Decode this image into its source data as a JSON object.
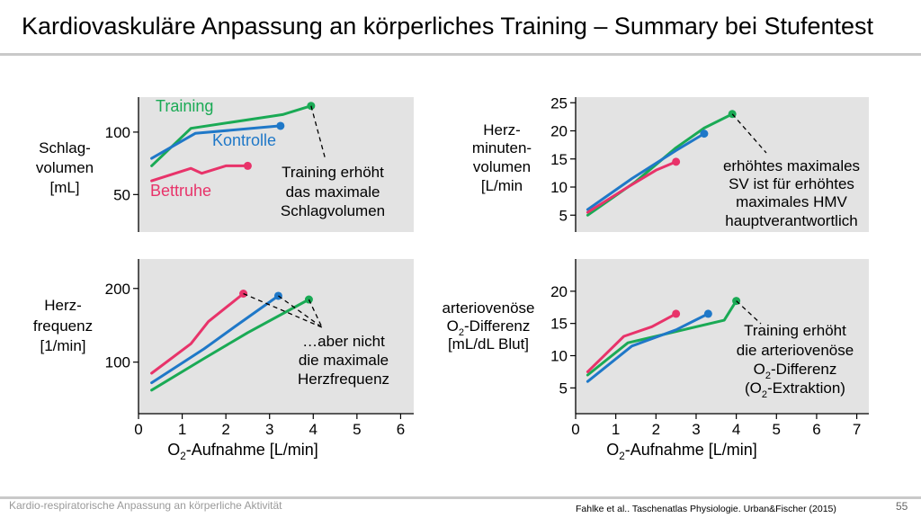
{
  "slide": {
    "title": "Kardiovaskuläre Anpassung an körperliches Training – Summary bei Stufentest",
    "footer_left": "Kardio-respiratorische Anpassung an körperliche Aktivität",
    "citation": "Fahlke et al.. Taschenatlas Physiologie. Urban&Fischer (2015)",
    "page_number": "55"
  },
  "colors": {
    "training": "#1aaa55",
    "kontrolle": "#1f78c8",
    "bettruhe": "#e8336a",
    "panel_bg": "#e3e3e3"
  },
  "chart_data": [
    {
      "type": "line",
      "ylabel": [
        "Schlag-",
        "volumen",
        "[mL]"
      ],
      "xlim": [
        0,
        6.3
      ],
      "ylim": [
        20,
        128
      ],
      "yticks": [
        50,
        100
      ],
      "series": [
        {
          "name": "Training",
          "color": "#1aaa55",
          "x": [
            0.3,
            1.2,
            3.3,
            3.95
          ],
          "y": [
            73,
            103,
            114,
            121
          ]
        },
        {
          "name": "Kontrolle",
          "color": "#1f78c8",
          "x": [
            0.3,
            1.3,
            3.25
          ],
          "y": [
            79,
            99,
            105
          ]
        },
        {
          "name": "Bettruhe",
          "color": "#e8336a",
          "x": [
            0.3,
            1.2,
            1.45,
            2.0,
            2.5
          ],
          "y": [
            61,
            71,
            67,
            73,
            73
          ]
        }
      ],
      "annotation": [
        "Training erhöht",
        "das maximale",
        "Schlagvolumen"
      ]
    },
    {
      "type": "line",
      "ylabel": [
        "Herz-",
        "minuten-",
        "volumen",
        "[L/min"
      ],
      "xlim": [
        0,
        7.3
      ],
      "ylim": [
        2,
        26
      ],
      "yticks": [
        5,
        10,
        15,
        20,
        25
      ],
      "series": [
        {
          "name": "Training",
          "color": "#1aaa55",
          "x": [
            0.3,
            1.5,
            2.5,
            3.2,
            3.9
          ],
          "y": [
            5,
            11,
            17,
            20.5,
            23
          ]
        },
        {
          "name": "Kontrolle",
          "color": "#1f78c8",
          "x": [
            0.3,
            1.4,
            2.5,
            3.2
          ],
          "y": [
            6,
            11.5,
            16.5,
            19.5
          ]
        },
        {
          "name": "Bettruhe",
          "color": "#e8336a",
          "x": [
            0.3,
            1.3,
            2.0,
            2.5
          ],
          "y": [
            5.5,
            10,
            13,
            14.5
          ]
        }
      ],
      "annotation": [
        "erhöhtes maximales",
        "SV ist für erhöhtes",
        "maximales HMV",
        "hauptverantwortlich"
      ]
    },
    {
      "type": "line",
      "ylabel": [
        "Herz-",
        "frequenz",
        "[1/min]"
      ],
      "xlim": [
        0,
        6.3
      ],
      "ylim": [
        30,
        240
      ],
      "yticks": [
        100,
        200
      ],
      "xticks": [
        0,
        1,
        2,
        3,
        4,
        5,
        6
      ],
      "xlabel": "O2-Aufnahme [L/min]",
      "series": [
        {
          "name": "Training",
          "color": "#1aaa55",
          "x": [
            0.3,
            1.5,
            2.5,
            3.9
          ],
          "y": [
            62,
            105,
            140,
            185
          ]
        },
        {
          "name": "Kontrolle",
          "color": "#1f78c8",
          "x": [
            0.3,
            1.5,
            2.2,
            3.2
          ],
          "y": [
            72,
            118,
            148,
            190
          ]
        },
        {
          "name": "Bettruhe",
          "color": "#e8336a",
          "x": [
            0.3,
            1.2,
            1.6,
            2.4
          ],
          "y": [
            85,
            125,
            155,
            193
          ]
        }
      ],
      "annotation": [
        "…aber nicht",
        "die maximale",
        "Herzfrequenz"
      ]
    },
    {
      "type": "line",
      "ylabel": [
        "arteriovenöse",
        "O2-Differenz",
        "[mL/dL Blut]"
      ],
      "xlim": [
        0,
        7.3
      ],
      "ylim": [
        1,
        25
      ],
      "yticks": [
        5,
        10,
        15,
        20
      ],
      "xticks": [
        0,
        1,
        2,
        3,
        4,
        5,
        6,
        7
      ],
      "xlabel": "O2-Aufnahme [L/min]",
      "series": [
        {
          "name": "Training",
          "color": "#1aaa55",
          "x": [
            0.3,
            1.3,
            3.7,
            4.0
          ],
          "y": [
            7,
            12,
            15.5,
            18.5
          ]
        },
        {
          "name": "Kontrolle",
          "color": "#1f78c8",
          "x": [
            0.3,
            1.4,
            2.5,
            3.3
          ],
          "y": [
            6,
            11.5,
            14,
            16.5
          ]
        },
        {
          "name": "Bettruhe",
          "color": "#e8336a",
          "x": [
            0.3,
            1.2,
            1.9,
            2.5
          ],
          "y": [
            7.5,
            13,
            14.5,
            16.5
          ]
        }
      ],
      "annotation": [
        "Training erhöht",
        "die arteriovenöse",
        "O2-Differenz",
        "(O2-Extraktion)"
      ]
    }
  ]
}
